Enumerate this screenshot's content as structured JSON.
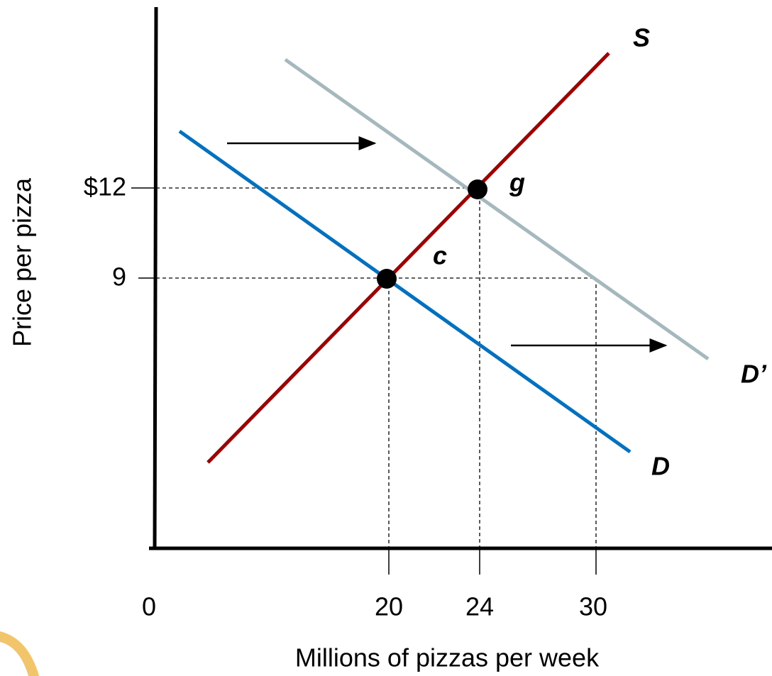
{
  "y_axis": {
    "label": "Price per pizza",
    "ticks": [
      "$12",
      "9"
    ]
  },
  "x_axis": {
    "label": "Millions of pizzas per week",
    "ticks": [
      "0",
      "20",
      "24",
      "30"
    ]
  },
  "curves": [
    {
      "label": "S"
    },
    {
      "label": "D"
    },
    {
      "label": "D’"
    }
  ],
  "points": [
    {
      "label": "c"
    },
    {
      "label": "g"
    }
  ]
}
